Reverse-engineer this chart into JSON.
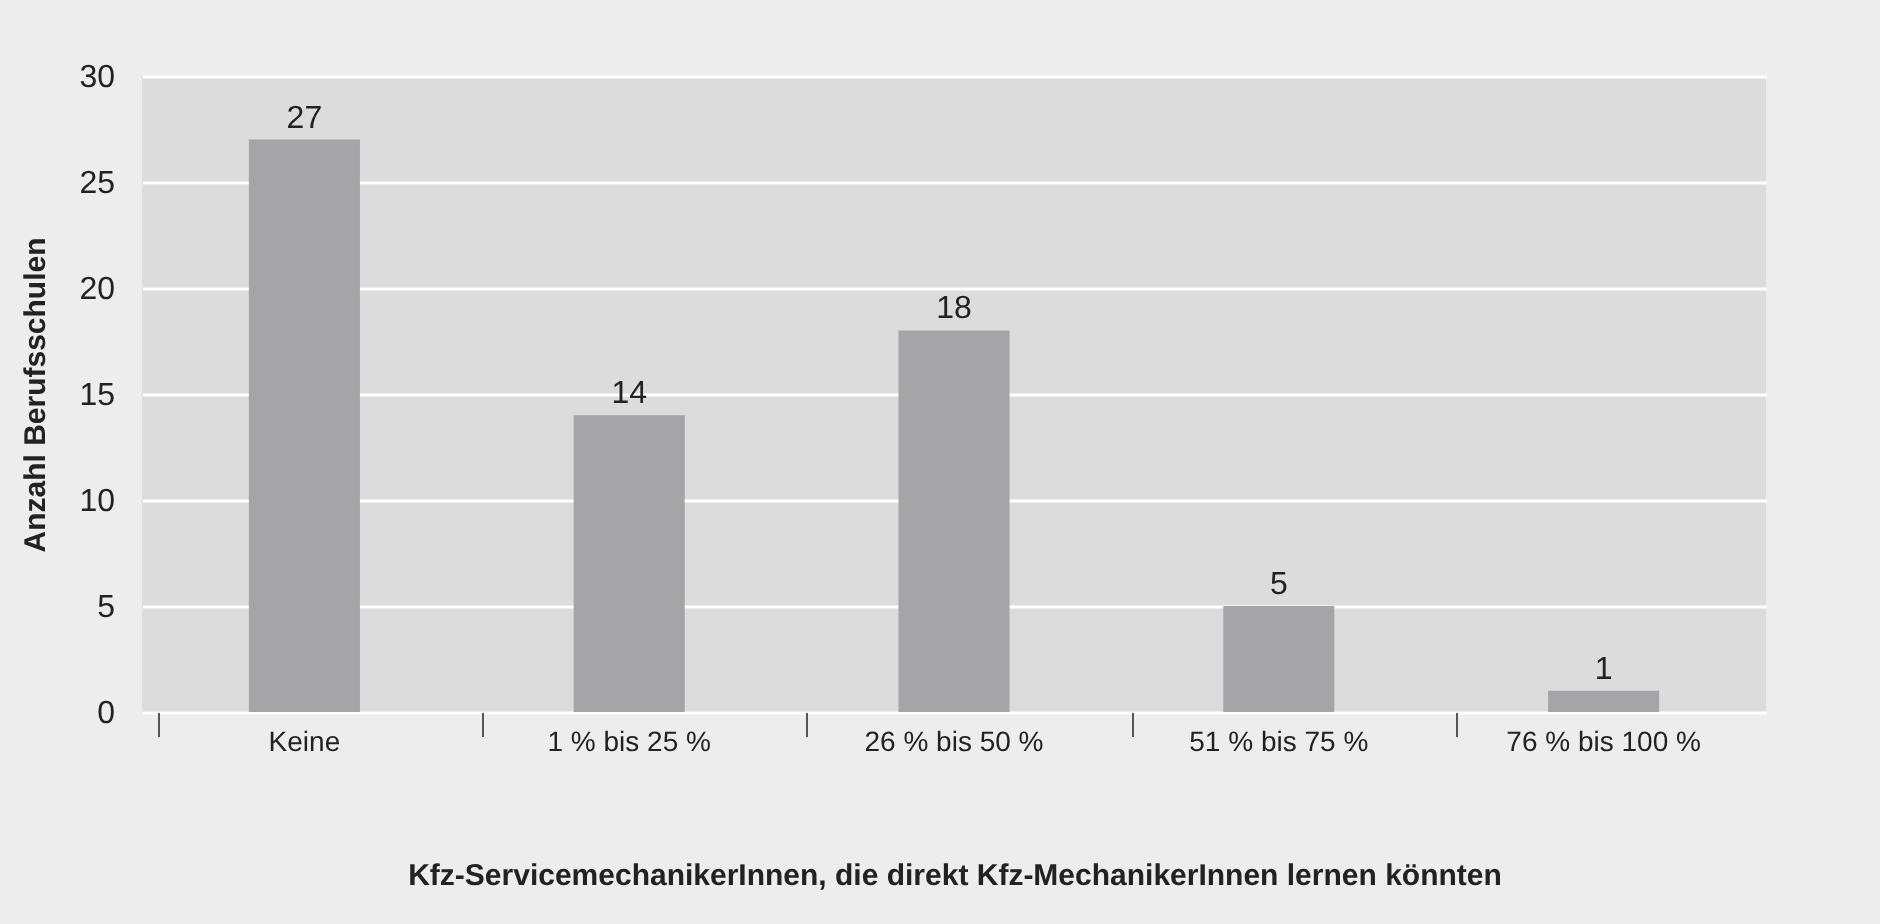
{
  "chart_data": {
    "type": "bar",
    "xlabel": "Kfz-ServicemechanikerInnen, die direkt Kfz-MechanikerInnen lernen könnten",
    "ylabel": "Anzahl Berufsschulen",
    "categories": [
      "Keine",
      "1 % bis 25 %",
      "26 % bis 50 %",
      "51 % bis 75 %",
      "76 % bis 100 %"
    ],
    "values": [
      27,
      14,
      18,
      5,
      1
    ],
    "color": "#a5a5a7",
    "ylim": [
      0,
      30
    ],
    "yticks": [
      0,
      5,
      10,
      15,
      20,
      25,
      30
    ],
    "grid": "y",
    "data_labels": true
  }
}
